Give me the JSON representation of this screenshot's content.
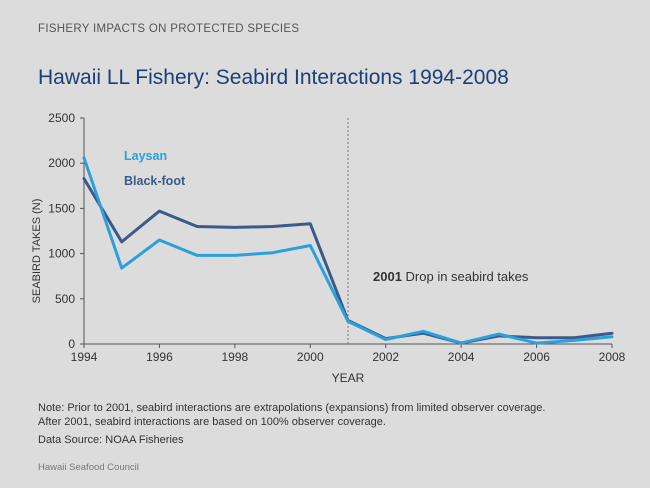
{
  "header": {
    "section_label": "FISHERY IMPACTS ON PROTECTED SPECIES"
  },
  "title": "Hawaii LL Fishery: Seabird Interactions 1994-2008",
  "note": {
    "line1": "Note:  Prior to 2001, seabird interactions are extrapolations (expansions) from limited observer coverage.",
    "line2": "After 2001, seabird interactions are based on 100% observer coverage."
  },
  "source": "Data Source: NOAA Fisheries",
  "footer": "Hawaii Seafood Council",
  "colors": {
    "laysan": "#2aa0dc",
    "blackfoot": "#3a5a8a",
    "axis": "#555555",
    "text": "#333333"
  },
  "chart_data": {
    "type": "line",
    "xlabel": "YEAR",
    "ylabel": "SEABIRD TAKES (N)",
    "xlim": [
      1994,
      2008
    ],
    "ylim": [
      0,
      2500
    ],
    "xticks": [
      1994,
      1996,
      1998,
      2000,
      2002,
      2004,
      2006,
      2008
    ],
    "yticks": [
      0,
      500,
      1000,
      1500,
      2000,
      2500
    ],
    "x": [
      1994,
      1995,
      1996,
      1997,
      1998,
      1999,
      2000,
      2001,
      2002,
      2003,
      2004,
      2005,
      2006,
      2007,
      2008
    ],
    "series": [
      {
        "name": "Laysan",
        "color": "#2aa0dc",
        "values": [
          2060,
          840,
          1150,
          980,
          980,
          1010,
          1090,
          250,
          50,
          140,
          10,
          110,
          10,
          40,
          80
        ]
      },
      {
        "name": "Black-foot",
        "color": "#3a5a8a",
        "values": [
          1830,
          1130,
          1470,
          1300,
          1290,
          1300,
          1330,
          260,
          60,
          120,
          10,
          90,
          70,
          70,
          120
        ]
      }
    ],
    "annotation": {
      "year": 2001,
      "year_label": "2001",
      "text": "Drop in seabird takes"
    }
  }
}
